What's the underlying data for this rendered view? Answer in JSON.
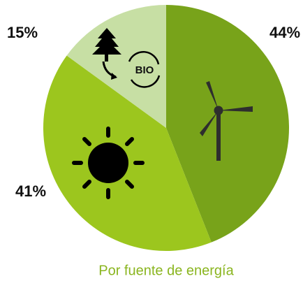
{
  "chart_data": {
    "type": "pie",
    "title": "Por fuente de energía",
    "values": [
      44,
      41,
      15
    ],
    "value_labels": [
      "44%",
      "41%",
      "15%"
    ],
    "colors": [
      "#78a31a",
      "#9cc61e",
      "#c7dfa4"
    ]
  }
}
